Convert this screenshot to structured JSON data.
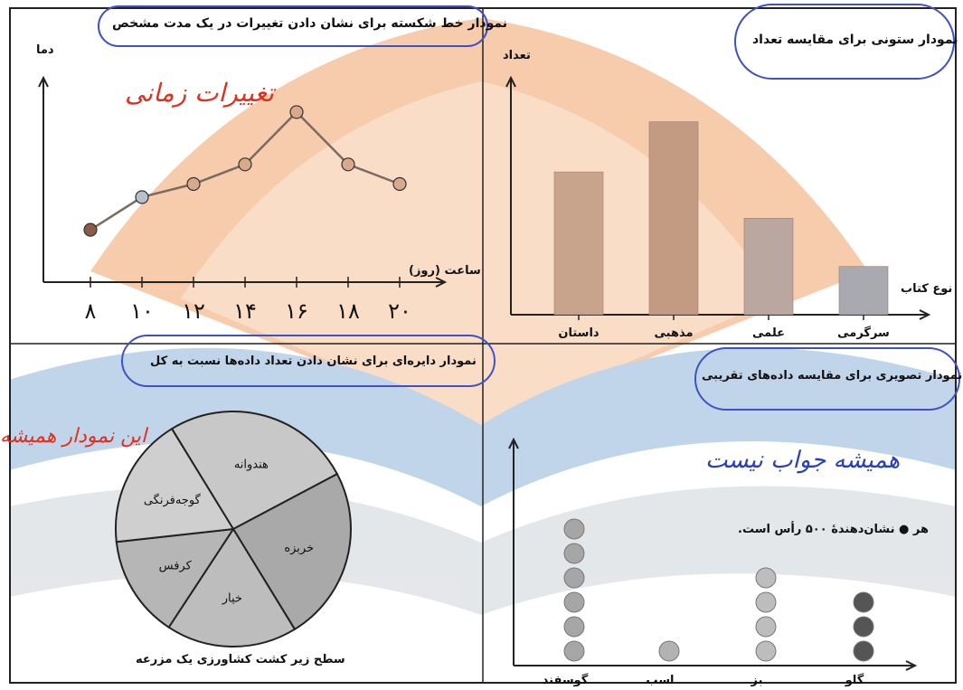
{
  "watermark_colors": {
    "orange": "#f0a36a",
    "blue": "#8fb3d9",
    "gray": "#cfd4da"
  },
  "panels": {
    "line": {
      "title": "نمودار خط شکسته برای نشان دادن تغییرات در یک مدت مشخص",
      "y_label": "دما",
      "x_label": "ساعت (روز)",
      "annotation": "تغییرات زمانی"
    },
    "bar": {
      "title": "نمودار ستونی برای مقایسه تعداد",
      "y_label": "تعداد",
      "x_label": "نوع کتاب"
    },
    "pie": {
      "title": "نمودار دایره‌ای برای نشان دادن تعداد داده‌ها نسبت به کل",
      "caption": "سطح زیر کشت کشاورزی یک مزرعه",
      "annotation": "این نمودار همیشه"
    },
    "picto": {
      "title": "نمودار تصویری برای مقایسه داده‌های تقریبی",
      "legend": "هر ● نشان‌دهندهٔ ۵۰۰ رأس است.",
      "annotation": "همیشه جواب نیست"
    }
  },
  "chart_data": [
    {
      "type": "line",
      "x": [
        8,
        10,
        12,
        14,
        16,
        18,
        20
      ],
      "tick_labels": [
        "۸",
        "۱۰",
        "۱۲",
        "۱۴",
        "۱۶",
        "۱۸",
        "۲۰"
      ],
      "values": [
        4,
        6.5,
        7.5,
        9,
        13,
        9,
        7.5
      ],
      "title": "نمودار خط شکسته برای نشان دادن تغییرات در یک مدت مشخص",
      "xlabel": "ساعت (روز)",
      "ylabel": "دما",
      "ylim": [
        0,
        15
      ],
      "grid": false
    },
    {
      "type": "bar",
      "categories": [
        "داستان",
        "مذهبی",
        "علمی",
        "سرگرمی"
      ],
      "values": [
        74,
        100,
        50,
        25
      ],
      "title": "نمودار ستونی برای مقایسه تعداد",
      "xlabel": "نوع کتاب",
      "ylabel": "تعداد",
      "ylim": [
        0,
        120
      ]
    },
    {
      "type": "pie",
      "categories": [
        "هندوانه",
        "خربزه",
        "خیار",
        "کرفس",
        "گوجه‌فرنگی"
      ],
      "values": [
        26,
        24,
        18,
        14,
        18
      ],
      "title": "نمودار دایره‌ای برای نشان دادن تعداد داده‌ها نسبت به کل",
      "caption": "سطح زیر کشت کشاورزی یک مزرعه",
      "colors": [
        "#c8c8c8",
        "#a9a9a9",
        "#bdbdbd",
        "#b6b6b6",
        "#cfcfcf"
      ]
    },
    {
      "type": "pictograph",
      "categories": [
        "گوسفند",
        "اسب",
        "بز",
        "گاو"
      ],
      "values": [
        6,
        1,
        4,
        3
      ],
      "unit": "هر ● نشان‌دهندهٔ ۵۰۰ رأس است.",
      "title": "نمودار تصویری برای مقایسه داده‌های تقریبی",
      "colors": [
        "#a6a6a6",
        "#b3b3b3",
        "#bdbdbd",
        "#555555"
      ]
    }
  ]
}
